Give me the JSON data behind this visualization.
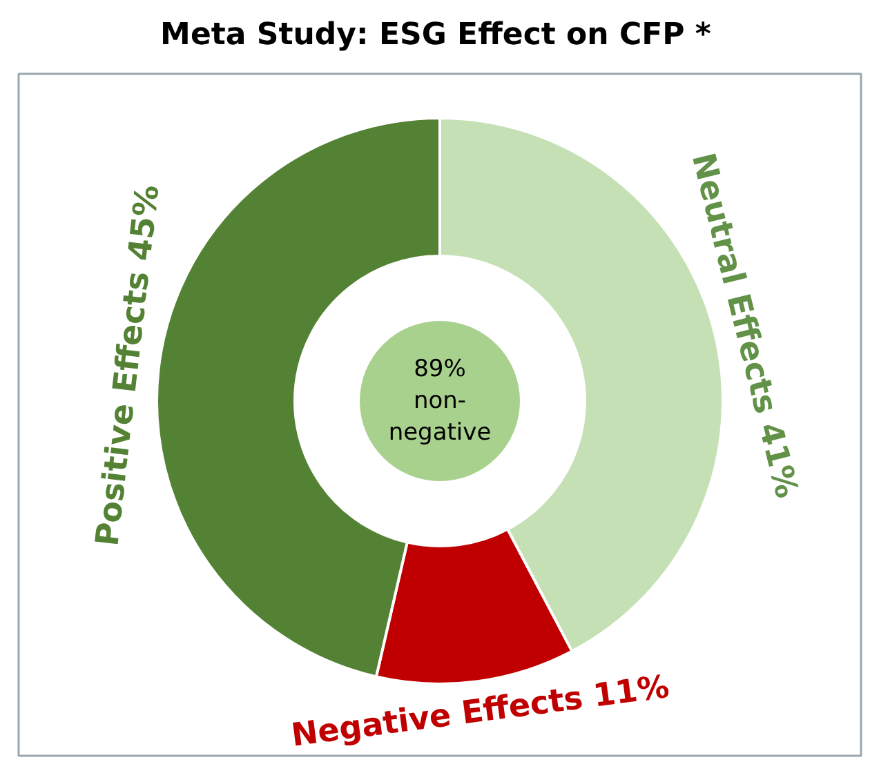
{
  "chart_data": {
    "type": "donut",
    "title": "Meta Study: ESG Effect on CFP *",
    "categories": [
      "Neutral Effects",
      "Negative Effects",
      "Positive Effects"
    ],
    "values": [
      41,
      11,
      45
    ],
    "colors": [
      "#c5e0b4",
      "#c00000",
      "#548235"
    ],
    "value_labels": [
      "41%",
      "11%",
      "45%"
    ],
    "annotations": [
      "89%\nnon-\nnegative"
    ]
  }
}
